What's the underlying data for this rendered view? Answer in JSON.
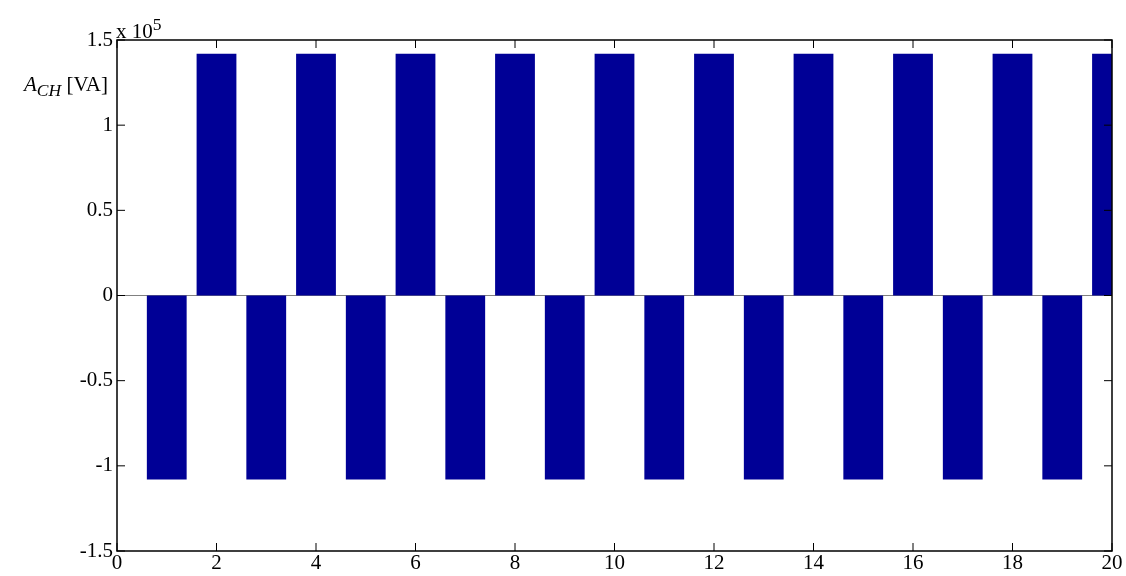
{
  "chart_data": {
    "type": "bar",
    "ylabel": "A$_{CH}$ [VA]",
    "annotations": [
      "x 10$^{5}$"
    ],
    "x": [
      1,
      2,
      3,
      4,
      5,
      6,
      7,
      8,
      9,
      10,
      11,
      12,
      13,
      14,
      15,
      16,
      17,
      18,
      19,
      20
    ],
    "series": [
      {
        "color": "#000096",
        "values": [
          -1.08,
          1.42,
          -1.08,
          1.42,
          -1.08,
          1.42,
          -1.08,
          1.42,
          -1.08,
          1.42,
          -1.08,
          1.42,
          -1.08,
          1.42,
          -1.08,
          1.42,
          -1.08,
          1.42,
          -1.08,
          1.42
        ]
      }
    ],
    "xlim": [
      0,
      20
    ],
    "xticks": [
      0,
      2,
      4,
      6,
      8,
      10,
      12,
      14,
      16,
      18,
      20
    ],
    "ylim": [
      -1.5,
      1.5
    ],
    "yticks": [
      -1.5,
      -1,
      -0.5,
      0,
      0.5,
      1,
      1.5
    ],
    "grid": false,
    "legend": false,
    "ref_lines": [
      {
        "axis": "y",
        "value": 0,
        "color": "#808080"
      }
    ]
  }
}
